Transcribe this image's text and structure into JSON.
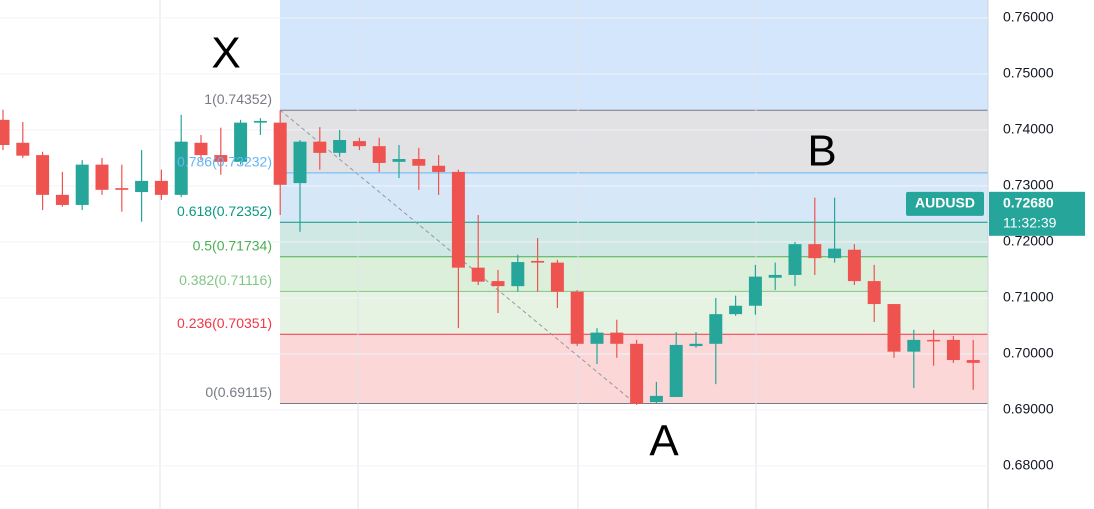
{
  "chart_data": {
    "type": "candlestick",
    "annotations": [
      "X",
      "A",
      "B"
    ],
    "up_color": "#26a69a",
    "down_color": "#ef5350",
    "open": [
      0.7418,
      0.7377,
      0.7355,
      0.7284,
      0.7266,
      0.7338,
      0.7296,
      0.7289,
      0.7309,
      0.7284,
      0.7377,
      0.7355,
      0.7343,
      0.7413,
      0.7413,
      0.7305,
      0.7379,
      0.7359,
      0.738,
      0.7371,
      0.7343,
      0.7348,
      0.7336,
      0.7325,
      0.7154,
      0.713,
      0.7121,
      0.7166,
      0.7163,
      0.7111,
      0.7018,
      0.7038,
      0.7018,
      0.6914,
      0.6923,
      0.7014,
      0.7018,
      0.7071,
      0.7086,
      0.7136,
      0.7141,
      0.7196,
      0.7171,
      0.7186,
      0.713,
      0.7089,
      0.7004,
      0.7025,
      0.7025,
      0.6989
    ],
    "high": [
      0.7436,
      0.7414,
      0.7361,
      0.7325,
      0.7346,
      0.735,
      0.7338,
      0.7364,
      0.7329,
      0.7427,
      0.7391,
      0.7404,
      0.7418,
      0.7421,
      0.7435,
      0.7382,
      0.7405,
      0.74,
      0.7386,
      0.7386,
      0.7373,
      0.7368,
      0.7355,
      0.7329,
      0.7248,
      0.715,
      0.7177,
      0.7207,
      0.7168,
      0.7114,
      0.7046,
      0.7061,
      0.7025,
      0.695,
      0.7039,
      0.7039,
      0.71,
      0.7104,
      0.7159,
      0.7163,
      0.72,
      0.7279,
      0.7279,
      0.7196,
      0.7159,
      0.7089,
      0.7043,
      0.7043,
      0.7032,
      0.7025
    ],
    "low": [
      0.7364,
      0.735,
      0.7257,
      0.7263,
      0.7257,
      0.7284,
      0.7254,
      0.7236,
      0.7275,
      0.728,
      0.7346,
      0.732,
      0.7338,
      0.7391,
      0.7248,
      0.7218,
      0.7329,
      0.7352,
      0.7364,
      0.7325,
      0.7314,
      0.7293,
      0.7284,
      0.7046,
      0.7123,
      0.7073,
      0.7111,
      0.7111,
      0.7082,
      0.7014,
      0.6982,
      0.6993,
      0.6909,
      0.6911,
      0.6923,
      0.7011,
      0.6946,
      0.7068,
      0.707,
      0.7114,
      0.7121,
      0.7141,
      0.7163,
      0.7123,
      0.7057,
      0.6993,
      0.6939,
      0.6979,
      0.6984,
      0.6936
    ],
    "close": [
      0.7373,
      0.7354,
      0.7284,
      0.7266,
      0.7338,
      0.7293,
      0.7293,
      0.7309,
      0.7284,
      0.7379,
      0.7355,
      0.7343,
      0.7413,
      0.7416,
      0.7302,
      0.7379,
      0.7359,
      0.7382,
      0.7371,
      0.7341,
      0.7348,
      0.7336,
      0.7325,
      0.7154,
      0.7129,
      0.7121,
      0.7164,
      0.7163,
      0.7111,
      0.7018,
      0.7038,
      0.7018,
      0.6911,
      0.6925,
      0.7016,
      0.7018,
      0.7071,
      0.7086,
      0.7138,
      0.7141,
      0.7196,
      0.7171,
      0.7188,
      0.713,
      0.7089,
      0.7004,
      0.7025,
      0.7023,
      0.6989,
      0.6984
    ],
    "fib_levels": [
      {
        "value": 0.74352,
        "label": "1(0.74352)",
        "color": "#787b86"
      },
      {
        "value": 0.73232,
        "label": "0.786(0.73232)",
        "color": "#64b5f6"
      },
      {
        "value": 0.72352,
        "label": "0.618(0.72352)",
        "color": "#089981"
      },
      {
        "value": 0.71734,
        "label": "0.5(0.71734)",
        "color": "#4caf50"
      },
      {
        "value": 0.71116,
        "label": "0.382(0.71116)",
        "color": "#81c784"
      },
      {
        "value": 0.70351,
        "label": "0.236(0.70351)",
        "color": "#f23645"
      },
      {
        "value": 0.69115,
        "label": "0(0.69115)",
        "color": "#787b86"
      }
    ],
    "price_label": {
      "symbol": "AUDUSD",
      "value": 0.7268,
      "label": "0.72680",
      "countdown": "11:32:39",
      "color": "#26a69a"
    },
    "ylim": [
      0.6723,
      0.7632
    ],
    "yticks": [
      {
        "value": 0.76,
        "label": "0.76000"
      },
      {
        "value": 0.75,
        "label": "0.75000"
      },
      {
        "value": 0.74,
        "label": "0.74000"
      },
      {
        "value": 0.73,
        "label": "0.73000"
      },
      {
        "value": 0.72,
        "label": "0.72000"
      },
      {
        "value": 0.71,
        "label": "0.71000"
      },
      {
        "value": 0.7,
        "label": "0.70000"
      },
      {
        "value": 0.69,
        "label": "0.69000"
      },
      {
        "value": 0.68,
        "label": "0.68000"
      }
    ]
  }
}
